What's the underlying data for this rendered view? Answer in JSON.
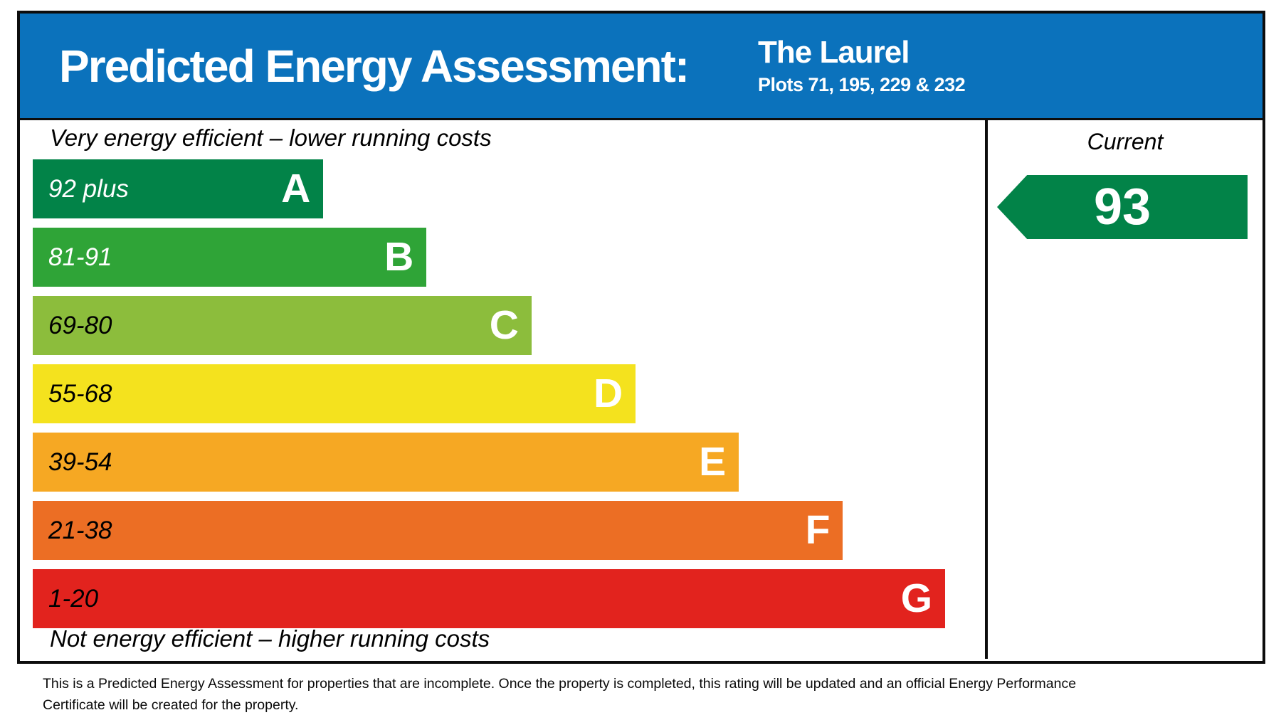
{
  "header": {
    "title": "Predicted Energy Assessment:",
    "property_name": "The Laurel",
    "plots_line": "Plots 71, 195, 229 & 232"
  },
  "chart_data": {
    "type": "bar",
    "title": "Predicted Energy Assessment",
    "top_caption": "Very energy efficient – lower running costs",
    "bottom_caption": "Not energy efficient – higher running costs",
    "legend_position": "right",
    "current": {
      "label": "Current",
      "value": 93,
      "band": "A",
      "arrow_color": "#028348",
      "text_color": "#ffffff"
    },
    "bands": [
      {
        "letter": "A",
        "range": "92 plus",
        "color": "#028348",
        "label_color": "#ffffff",
        "width_pct": 30.7
      },
      {
        "letter": "B",
        "range": "81-91",
        "color": "#2FA437",
        "label_color": "#ffffff",
        "width_pct": 41.6
      },
      {
        "letter": "C",
        "range": "69-80",
        "color": "#8CBD3C",
        "label_color": "#000000",
        "width_pct": 52.7
      },
      {
        "letter": "D",
        "range": "55-68",
        "color": "#F4E21E",
        "label_color": "#000000",
        "width_pct": 63.7
      },
      {
        "letter": "E",
        "range": "39-54",
        "color": "#F6A823",
        "label_color": "#000000",
        "width_pct": 74.6
      },
      {
        "letter": "F",
        "range": "21-38",
        "color": "#EC6E24",
        "label_color": "#000000",
        "width_pct": 85.6
      },
      {
        "letter": "G",
        "range": "1-20",
        "color": "#E2231E",
        "label_color": "#000000",
        "width_pct": 96.4
      }
    ]
  },
  "footer": {
    "disclaimer": "This is a Predicted Energy Assessment for properties that are incomplete. Once the property is completed, this rating will be updated and an official Energy Performance Certificate will be created for the property."
  },
  "colors": {
    "header_bg": "#0B72BC",
    "border": "#0d0d0d"
  }
}
